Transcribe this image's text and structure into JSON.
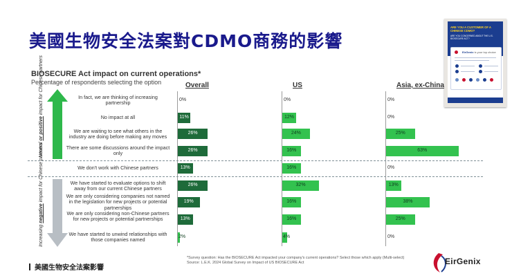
{
  "slide": {
    "title": "美國生物安全法案對CDMO商務的影響",
    "footer_left": "美國生物安全法案影響",
    "logo_text": "EirGenix"
  },
  "chart_data": {
    "type": "bar",
    "orientation": "horizontal",
    "title": "BIOSECURE Act impact on current operations*",
    "subtitle": "Percentage of respondents selecting the option",
    "columns": [
      "Overall",
      "US",
      "Asia, ex-China"
    ],
    "categories": [
      "In fact, we are thinking of increasing partnership",
      "No impact at all",
      "We are waiting to see what others in the industry are doing before making any moves",
      "There are some discussions around the impact only",
      "We don't work with Chinese partners",
      "We have started to evaluate options to shift away from our current Chinese partners",
      "We are only considering companies not named in the legislation for new projects or potential partnerships",
      "We are only considering non-Chinese partners for new projects or potential partnerships",
      "We have started to unwind relationships with those companies named"
    ],
    "series": [
      {
        "name": "Overall",
        "values": [
          0,
          11,
          26,
          26,
          13,
          26,
          19,
          13,
          2
        ]
      },
      {
        "name": "US",
        "values": [
          0,
          12,
          24,
          16,
          16,
          32,
          16,
          16,
          4
        ]
      },
      {
        "name": "Asia, ex-China",
        "values": [
          0,
          0,
          25,
          63,
          0,
          13,
          38,
          25,
          0
        ]
      }
    ],
    "labels": [
      [
        "0%",
        "11%",
        "26%",
        "26%",
        "13%",
        "26%",
        "19%",
        "13%",
        "2%"
      ],
      [
        "0%",
        "12%",
        "24%",
        "16%",
        "16%",
        "32%",
        "16%",
        "16%",
        "4%"
      ],
      [
        "0%",
        "0%",
        "25%",
        "63%",
        "0%",
        "13%",
        "38%",
        "25%",
        "0%"
      ]
    ],
    "groups": [
      {
        "label": "Neutral or positive impact for Chinese partners",
        "emphasis": "positive",
        "rows": [
          0,
          3
        ]
      },
      {
        "label": "Increasing negative impact for Chinese partners",
        "emphasis": "negative",
        "rows": [
          5,
          8
        ]
      }
    ],
    "footnote": [
      "*Survey question: Has the BIOSECURE Act impacted your company's current operations? Select those which apply (Multi-select)",
      "Source: L.E.K. 2024 Global Survey on Impact of US BIOSECURE Act"
    ]
  },
  "poster": {
    "headline": "ARE YOU A CUSTOMER OF A CHINESE CDMO?",
    "subline": "ARE YOU CONCERNED ABOUT THE U.S. BIOSECURE ACT?",
    "brand": "EirGenix",
    "tagline": "is your top choice"
  },
  "colors": {
    "title": "#1a1a8c",
    "dark_bar": "#1e6b3a",
    "light_bar": "#33c24f",
    "arrow_green": "#2eb84b",
    "arrow_grey": "#b8bec4",
    "poster_blue": "#1b3d8f"
  }
}
